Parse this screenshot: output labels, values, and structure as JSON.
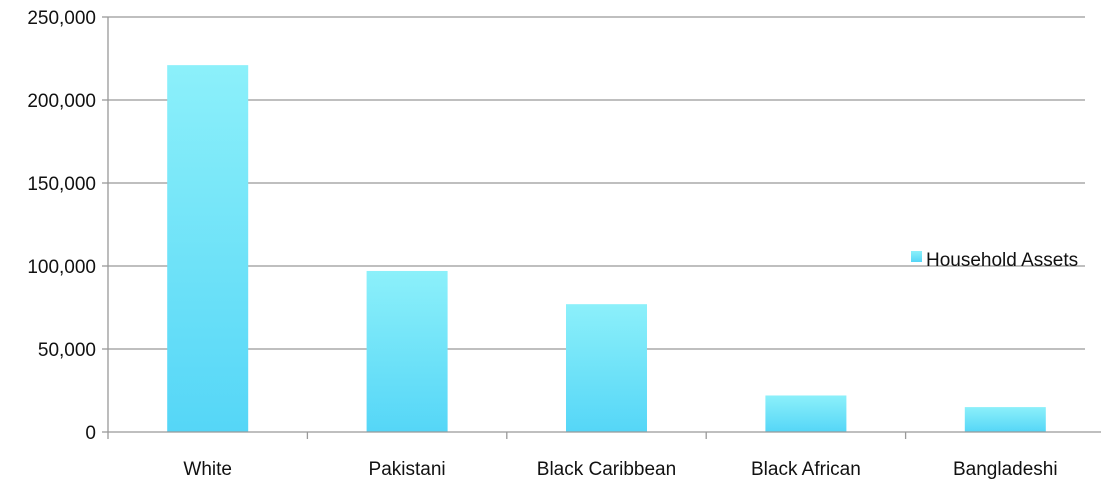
{
  "chart_data": {
    "type": "bar",
    "categories": [
      "White",
      "Pakistani",
      "Black Caribbean",
      "Black African",
      "Bangladeshi"
    ],
    "series": [
      {
        "name": "Household Assets",
        "values": [
          221000,
          97000,
          77000,
          22000,
          15000
        ]
      }
    ],
    "ylim": [
      0,
      250000
    ],
    "yticks": [
      "0",
      "50,000",
      "100,000",
      "150,000",
      "200,000",
      "250,000"
    ],
    "ytick_values": [
      0,
      50000,
      100000,
      150000,
      200000,
      250000
    ],
    "grid": true,
    "legend_position": "right",
    "colors": {
      "bar_top": "#8cf0fa",
      "bar_bottom": "#55d6f7",
      "grid": "#999999"
    }
  }
}
